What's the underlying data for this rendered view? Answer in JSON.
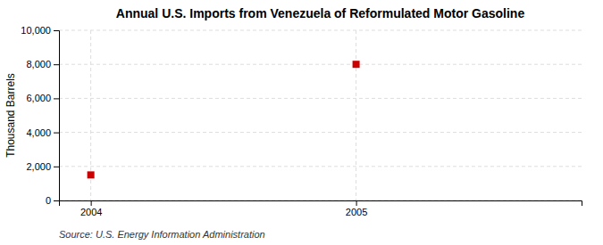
{
  "chart_data": {
    "type": "scatter",
    "title": "Annual U.S. Imports from Venezuela of Reformulated Motor Gasoline",
    "ylabel": "Thousand Barrels",
    "source": "Source: U.S. Energy Information Administration",
    "x": [
      2004,
      2005
    ],
    "values": [
      1500,
      8000
    ],
    "color": "#cc0000",
    "marker": "square",
    "xlim": [
      2003.88,
      2005.85
    ],
    "xticks": [
      2004,
      2005
    ],
    "ylim": [
      0,
      10000
    ],
    "yticks": [
      0,
      {
        "value": 2000,
        "label": "2,000"
      },
      {
        "value": 4000,
        "label": "4,000"
      },
      {
        "value": 6000,
        "label": "6,000"
      },
      {
        "value": 8000,
        "label": "8,000"
      },
      {
        "value": 10000,
        "label": "10,000"
      }
    ],
    "grid": true
  }
}
